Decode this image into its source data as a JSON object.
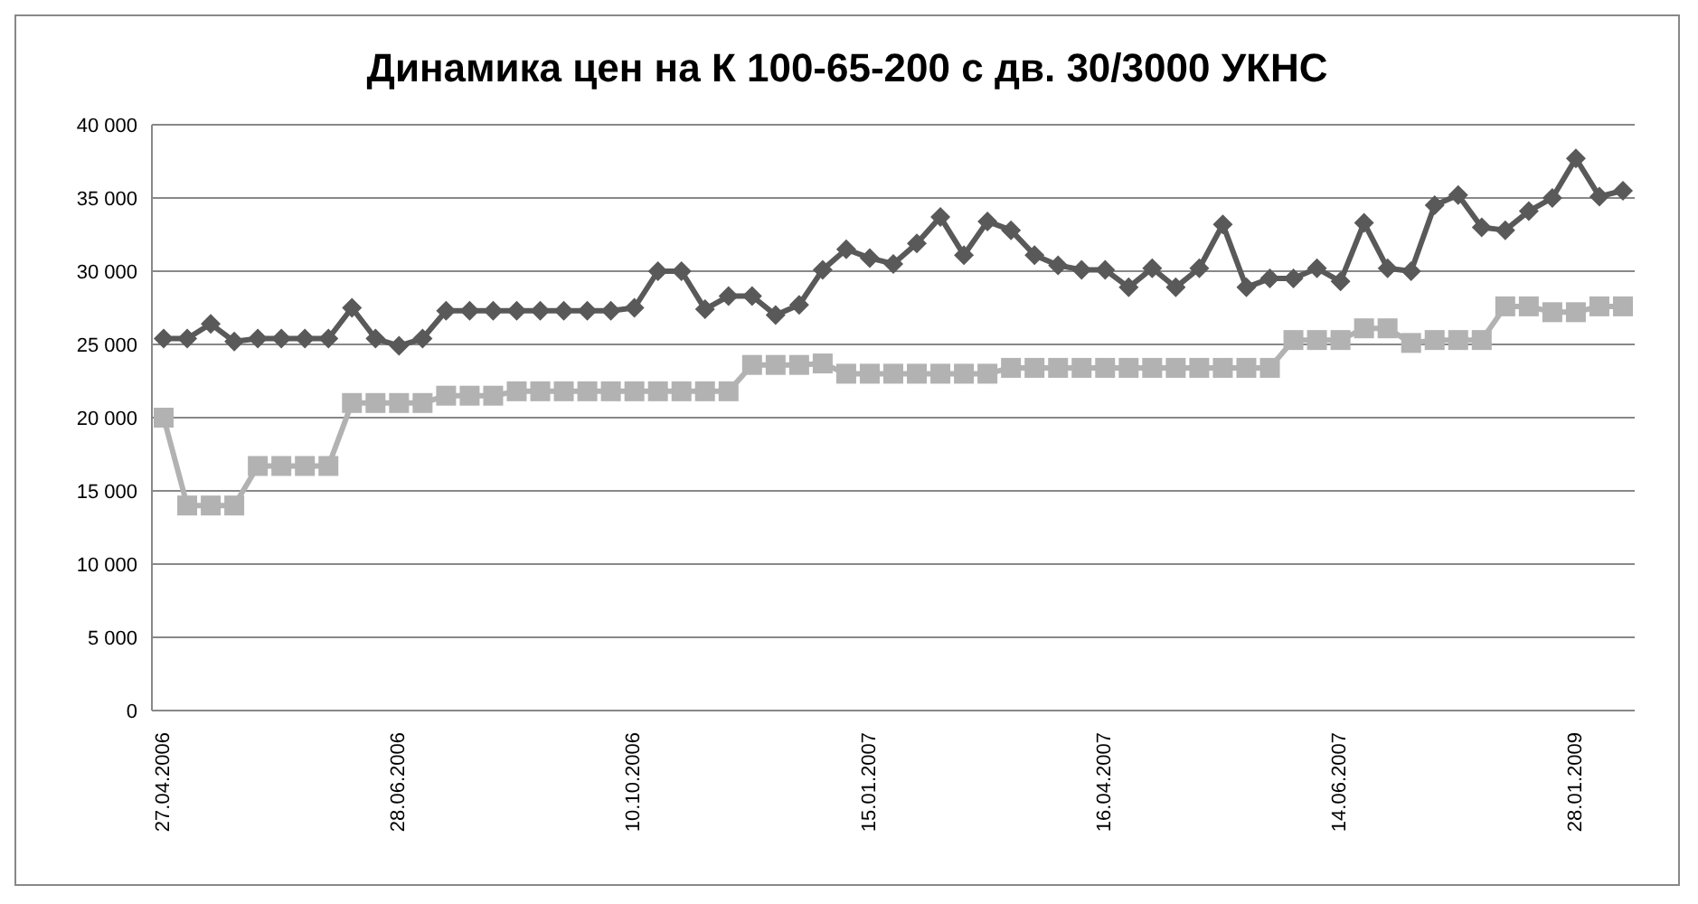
{
  "chart_data": {
    "type": "line",
    "title": "Динамика цен на К 100-65-200 с дв. 30/3000 УКНС",
    "categories": [
      "27.04.2006",
      null,
      null,
      null,
      null,
      null,
      null,
      null,
      null,
      null,
      "28.06.2006",
      null,
      null,
      null,
      null,
      null,
      null,
      null,
      null,
      null,
      "10.10.2006",
      null,
      null,
      null,
      null,
      null,
      null,
      null,
      null,
      null,
      "15.01.2007",
      null,
      null,
      null,
      null,
      null,
      null,
      null,
      null,
      null,
      "16.04.2007",
      null,
      null,
      null,
      null,
      null,
      null,
      null,
      null,
      null,
      "14.06.2007",
      null,
      null,
      null,
      null,
      null,
      null,
      null,
      null,
      null,
      "28.01.2009",
      null,
      null
    ],
    "series": [
      {
        "color": "#595959",
        "marker": "diamond",
        "values": [
          25400,
          25400,
          26400,
          25200,
          25400,
          25400,
          25400,
          25400,
          27500,
          25400,
          24900,
          25400,
          27300,
          27300,
          27300,
          27300,
          27300,
          27300,
          27300,
          27300,
          27500,
          30000,
          30000,
          27400,
          28300,
          28300,
          27000,
          27700,
          30100,
          31500,
          30900,
          30500,
          31900,
          33700,
          31100,
          33400,
          32800,
          31100,
          30400,
          30100,
          30100,
          28900,
          30200,
          28900,
          30200,
          33200,
          28900,
          29500,
          29500,
          30200,
          29300,
          33300,
          30200,
          30000,
          34500,
          35200,
          33000,
          32800,
          34100,
          35000,
          37700,
          35100,
          35500
        ]
      },
      {
        "color": "#b2b2b2",
        "marker": "square",
        "values": [
          20000,
          14000,
          14000,
          14000,
          16700,
          16700,
          16700,
          16700,
          21000,
          21000,
          21000,
          21000,
          21500,
          21500,
          21500,
          21800,
          21800,
          21800,
          21800,
          21800,
          21800,
          21800,
          21800,
          21800,
          21800,
          23600,
          23600,
          23600,
          23700,
          23000,
          23000,
          23000,
          23000,
          23000,
          23000,
          23000,
          23400,
          23400,
          23400,
          23400,
          23400,
          23400,
          23400,
          23400,
          23400,
          23400,
          23400,
          23400,
          25300,
          25300,
          25300,
          26100,
          26100,
          25100,
          25300,
          25300,
          25300,
          27600,
          27600,
          27200,
          27200,
          27600,
          27600
        ]
      }
    ],
    "ylim": [
      0,
      40000
    ],
    "yticks": [
      {
        "value": 0,
        "label": "0"
      },
      {
        "value": 5000,
        "label": "5 000"
      },
      {
        "value": 10000,
        "label": "10 000"
      },
      {
        "value": 15000,
        "label": "15 000"
      },
      {
        "value": 20000,
        "label": "20 000"
      },
      {
        "value": 25000,
        "label": "25 000"
      },
      {
        "value": 30000,
        "label": "30 000"
      },
      {
        "value": 35000,
        "label": "35 000"
      },
      {
        "value": 40000,
        "label": "40 000"
      }
    ],
    "grid": "y",
    "legend": false
  }
}
